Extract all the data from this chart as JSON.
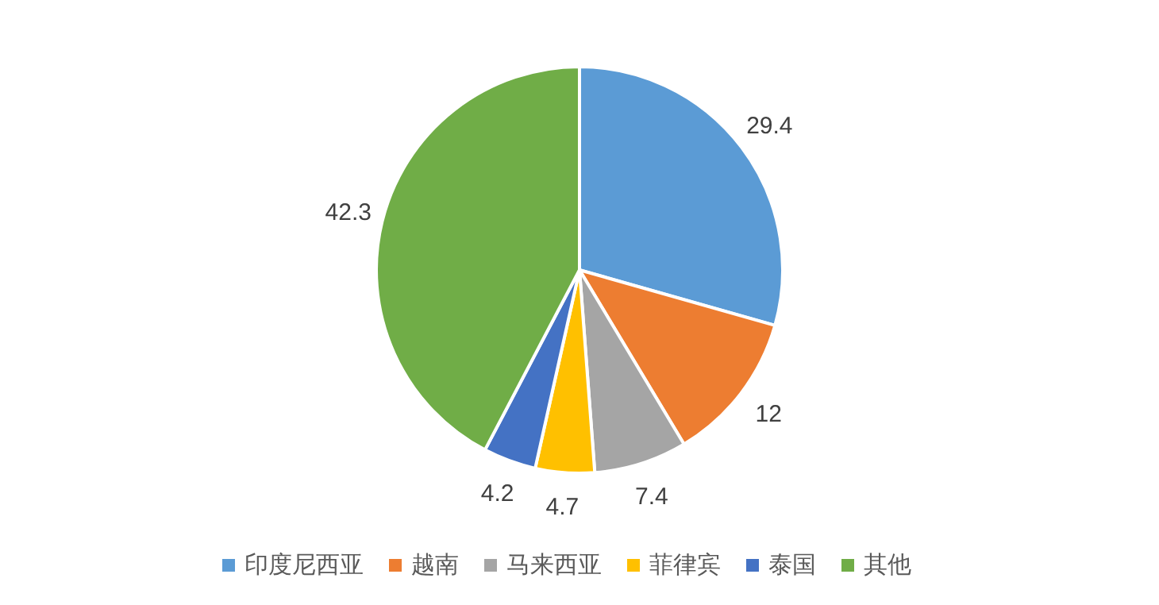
{
  "chart_data": {
    "type": "pie",
    "categories": [
      "印度尼西亚",
      "越南",
      "马来西亚",
      "菲律宾",
      "泰国",
      "其他"
    ],
    "values": [
      29.4,
      12,
      7.4,
      4.7,
      4.2,
      42.3
    ],
    "colors": [
      "#5b9bd5",
      "#ed7d31",
      "#a5a5a5",
      "#ffc000",
      "#4472c4",
      "#70ad47"
    ],
    "data_labels": true,
    "legend": "bottom"
  }
}
